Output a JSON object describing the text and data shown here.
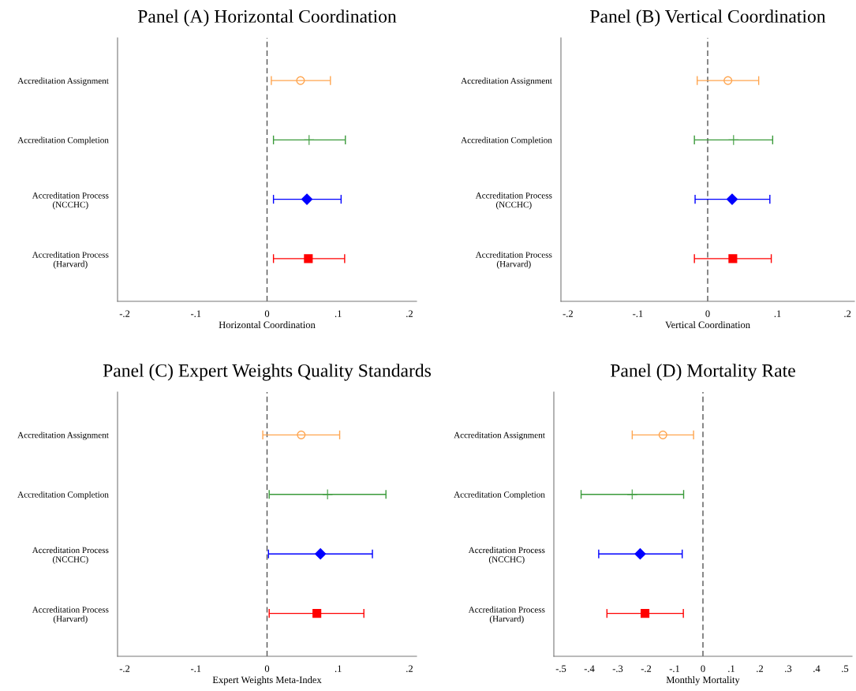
{
  "chart_data": [
    {
      "type": "scatter",
      "orientation": "horizontal",
      "title": "Panel (A) Horizontal Coordination",
      "xlabel": "Horizontal Coordination",
      "categories": [
        "Accreditation Assignment",
        "Accreditation Completion",
        "Accreditation Process\n(NCCHC)",
        "Accreditation Process\n(Harvard)"
      ],
      "xlim": [
        -0.21,
        0.21
      ],
      "xticks": [
        {
          "value": -0.2,
          "label": "-.2"
        },
        {
          "value": -0.1,
          "label": "-.1"
        },
        0,
        {
          "value": 0.1,
          "label": ".1"
        },
        {
          "value": 0.2,
          "label": ".2"
        }
      ],
      "grid": false,
      "ref_lines": [
        {
          "axis": "x",
          "value": 0,
          "color": "#555555",
          "line_style": "dashed"
        }
      ],
      "series": [
        {
          "color": "#ffa54f",
          "marker": "circle",
          "values": [
            0.047,
            null,
            null,
            null
          ],
          "errors": [
            [
              0.006,
              0.089
            ],
            null,
            null,
            null
          ]
        },
        {
          "color": "#3a9a3a",
          "marker": "cross",
          "values": [
            null,
            0.059,
            null,
            null
          ],
          "errors": [
            null,
            [
              0.009,
              0.11
            ],
            null,
            null
          ]
        },
        {
          "color": "#0000ff",
          "marker": "diamond",
          "values": [
            null,
            null,
            0.056,
            null
          ],
          "errors": [
            null,
            null,
            [
              0.009,
              0.104
            ],
            null
          ]
        },
        {
          "color": "#ff0000",
          "marker": "square",
          "values": [
            null,
            null,
            null,
            0.058
          ],
          "errors": [
            null,
            null,
            null,
            [
              0.009,
              0.109
            ]
          ]
        }
      ]
    },
    {
      "type": "scatter",
      "orientation": "horizontal",
      "title": "Panel (B) Vertical Coordination",
      "xlabel": "Vertical Coordination",
      "categories": [
        "Accreditation Assignment",
        "Accreditation Completion",
        "Accreditation Process\n(NCCHC)",
        "Accreditation Process\n(Harvard)"
      ],
      "xlim": [
        -0.21,
        0.21
      ],
      "xticks": [
        {
          "value": -0.2,
          "label": "-.2"
        },
        {
          "value": -0.1,
          "label": "-.1"
        },
        0,
        {
          "value": 0.1,
          "label": ".1"
        },
        {
          "value": 0.2,
          "label": ".2"
        }
      ],
      "grid": false,
      "ref_lines": [
        {
          "axis": "x",
          "value": 0,
          "color": "#555555",
          "line_style": "dashed"
        }
      ],
      "series": [
        {
          "color": "#ffa54f",
          "marker": "circle",
          "values": [
            0.029,
            null,
            null,
            null
          ],
          "errors": [
            [
              -0.015,
              0.073
            ],
            null,
            null,
            null
          ]
        },
        {
          "color": "#3a9a3a",
          "marker": "cross",
          "values": [
            null,
            0.037,
            null,
            null
          ],
          "errors": [
            null,
            [
              -0.019,
              0.093
            ],
            null,
            null
          ]
        },
        {
          "color": "#0000ff",
          "marker": "diamond",
          "values": [
            null,
            null,
            0.035,
            null
          ],
          "errors": [
            null,
            null,
            [
              -0.018,
              0.089
            ],
            null
          ]
        },
        {
          "color": "#ff0000",
          "marker": "square",
          "values": [
            null,
            null,
            null,
            0.036
          ],
          "errors": [
            null,
            null,
            null,
            [
              -0.019,
              0.091
            ]
          ]
        }
      ]
    },
    {
      "type": "scatter",
      "orientation": "horizontal",
      "title": "Panel (C) Expert Weights Quality Standards",
      "xlabel": "Expert Weights Meta-Index",
      "categories": [
        "Accreditation Assignment",
        "Accreditation Completion",
        "Accreditation Process\n(NCCHC)",
        "Accreditation Process\n(Harvard)"
      ],
      "xlim": [
        -0.21,
        0.21
      ],
      "xticks": [
        {
          "value": -0.2,
          "label": "-.2"
        },
        {
          "value": -0.1,
          "label": "-.1"
        },
        0,
        {
          "value": 0.1,
          "label": ".1"
        },
        {
          "value": 0.2,
          "label": ".2"
        }
      ],
      "grid": false,
      "ref_lines": [
        {
          "axis": "x",
          "value": 0,
          "color": "#555555",
          "line_style": "dashed"
        }
      ],
      "series": [
        {
          "color": "#ffa54f",
          "marker": "circle",
          "values": [
            0.048,
            null,
            null,
            null
          ],
          "errors": [
            [
              -0.006,
              0.102
            ],
            null,
            null,
            null
          ]
        },
        {
          "color": "#3a9a3a",
          "marker": "cross",
          "values": [
            null,
            0.085,
            null,
            null
          ],
          "errors": [
            null,
            [
              0.003,
              0.167
            ],
            null,
            null
          ]
        },
        {
          "color": "#0000ff",
          "marker": "diamond",
          "values": [
            null,
            null,
            0.075,
            null
          ],
          "errors": [
            null,
            null,
            [
              0.002,
              0.148
            ],
            null
          ]
        },
        {
          "color": "#ff0000",
          "marker": "square",
          "values": [
            null,
            null,
            null,
            0.07
          ],
          "errors": [
            null,
            null,
            null,
            [
              0.003,
              0.136
            ]
          ]
        }
      ]
    },
    {
      "type": "scatter",
      "orientation": "horizontal",
      "title": "Panel (D) Mortality Rate",
      "xlabel": "Monthly Mortality",
      "categories": [
        "Accreditation Assignment",
        "Accreditation Completion",
        "Accreditation Process\n(NCCHC)",
        "Accreditation Process\n(Harvard)"
      ],
      "xlim": [
        -0.525,
        0.525
      ],
      "xticks": [
        {
          "value": -0.5,
          "label": "-.5"
        },
        {
          "value": -0.4,
          "label": "-.4"
        },
        {
          "value": -0.3,
          "label": "-.3"
        },
        {
          "value": -0.2,
          "label": "-.2"
        },
        {
          "value": -0.1,
          "label": "-.1"
        },
        0,
        {
          "value": 0.1,
          "label": ".1"
        },
        {
          "value": 0.2,
          "label": ".2"
        },
        {
          "value": 0.3,
          "label": ".3"
        },
        {
          "value": 0.4,
          "label": ".4"
        },
        {
          "value": 0.5,
          "label": ".5"
        }
      ],
      "grid": false,
      "ref_lines": [
        {
          "axis": "x",
          "value": 0,
          "color": "#555555",
          "line_style": "dashed"
        }
      ],
      "series": [
        {
          "color": "#ffa54f",
          "marker": "circle",
          "values": [
            -0.141,
            null,
            null,
            null
          ],
          "errors": [
            [
              -0.249,
              -0.033
            ],
            null,
            null,
            null
          ]
        },
        {
          "color": "#3a9a3a",
          "marker": "cross",
          "values": [
            null,
            -0.249,
            null,
            null
          ],
          "errors": [
            null,
            [
              -0.429,
              -0.068
            ],
            null,
            null
          ]
        },
        {
          "color": "#0000ff",
          "marker": "diamond",
          "values": [
            null,
            null,
            -0.221,
            null
          ],
          "errors": [
            null,
            null,
            [
              -0.367,
              -0.073
            ],
            null
          ]
        },
        {
          "color": "#ff0000",
          "marker": "square",
          "values": [
            null,
            null,
            null,
            -0.204
          ],
          "errors": [
            null,
            null,
            null,
            [
              -0.338,
              -0.069
            ]
          ]
        }
      ]
    }
  ]
}
